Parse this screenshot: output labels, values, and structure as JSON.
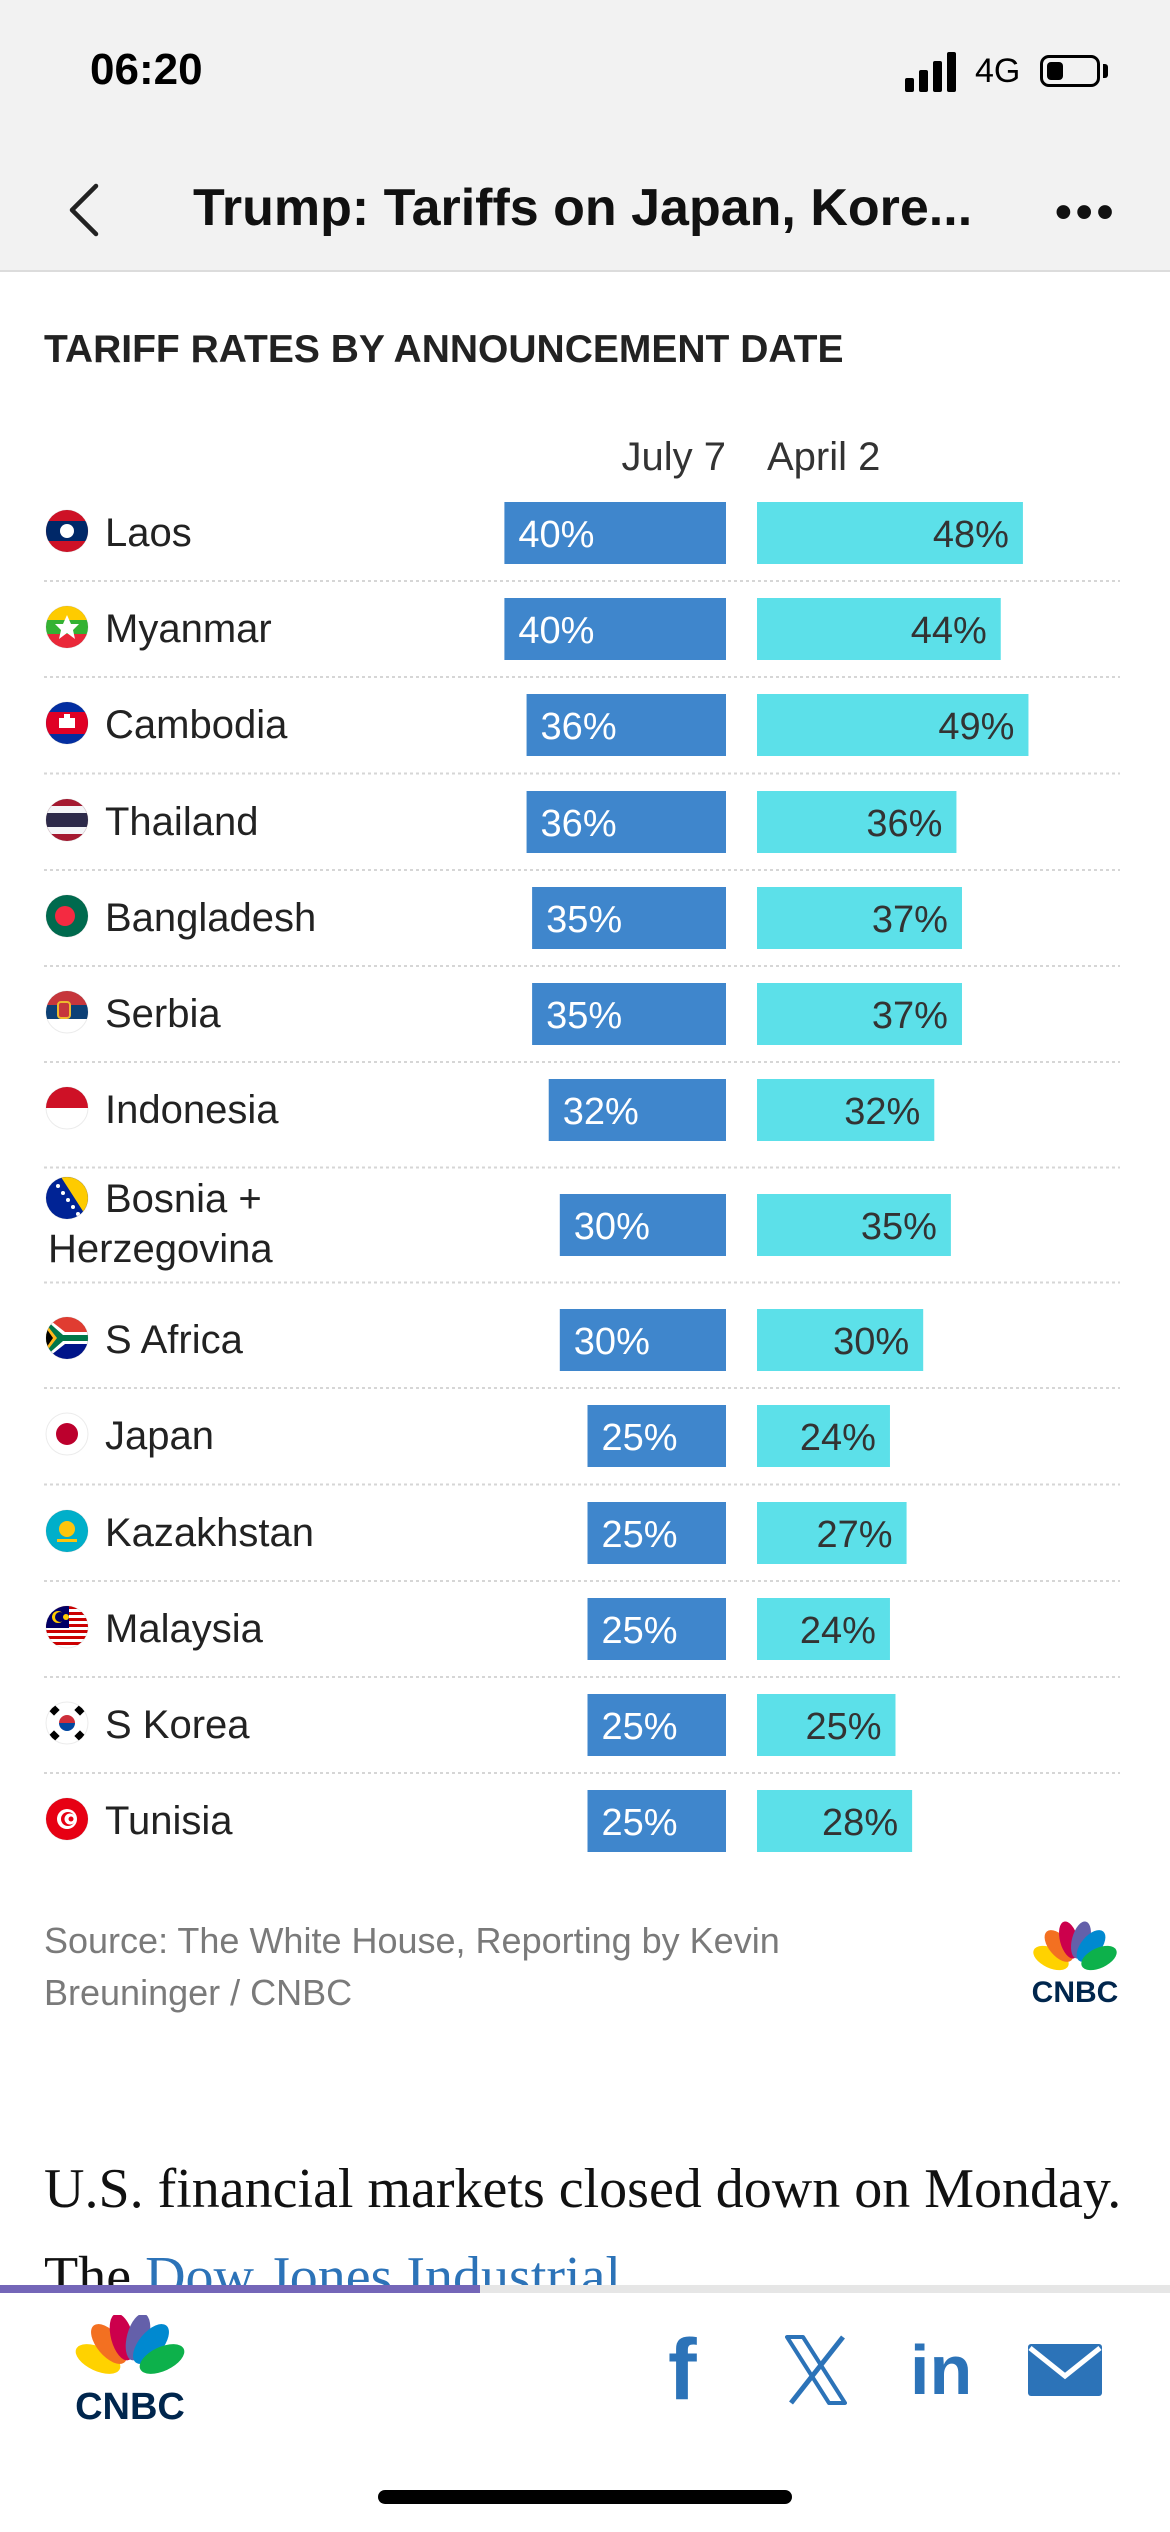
{
  "status": {
    "time": "06:20",
    "network": "4G",
    "battery_level": 0.35
  },
  "nav": {
    "title": "Trump: Tariffs on Japan, Kore..."
  },
  "chart_data": {
    "type": "bar",
    "title": "TARIFF RATES BY ANNOUNCEMENT DATE",
    "series": [
      {
        "name": "July 7",
        "color": "#3f86cc",
        "values": [
          40,
          40,
          36,
          36,
          35,
          35,
          32,
          30,
          30,
          25,
          25,
          25,
          25,
          25
        ]
      },
      {
        "name": "April 2",
        "color": "#5ce0e9",
        "values": [
          48,
          44,
          49,
          36,
          37,
          37,
          32,
          35,
          30,
          24,
          27,
          24,
          25,
          28
        ]
      }
    ],
    "categories": [
      "Laos",
      "Myanmar",
      "Cambodia",
      "Thailand",
      "Bangladesh",
      "Serbia",
      "Indonesia",
      "Bosnia + Herzegovina",
      "S Africa",
      "Japan",
      "Kazakhstan",
      "Malaysia",
      "S Korea",
      "Tunisia"
    ],
    "category_lines": [
      [
        "Laos"
      ],
      [
        "Myanmar"
      ],
      [
        "Cambodia"
      ],
      [
        "Thailand"
      ],
      [
        "Bangladesh"
      ],
      [
        "Serbia"
      ],
      [
        "Indonesia"
      ],
      [
        "Bosnia +",
        "Herzegovina"
      ],
      [
        "S Africa"
      ],
      [
        "Japan"
      ],
      [
        "Kazakhstan"
      ],
      [
        "Malaysia"
      ],
      [
        "S Korea"
      ],
      [
        "Tunisia"
      ]
    ],
    "flag_icons": [
      "flag-laos-icon",
      "flag-myanmar-icon",
      "flag-cambodia-icon",
      "flag-thailand-icon",
      "flag-bangladesh-icon",
      "flag-serbia-icon",
      "flag-indonesia-icon",
      "flag-bosnia-icon",
      "flag-south-africa-icon",
      "flag-japan-icon",
      "flag-kazakhstan-icon",
      "flag-malaysia-icon",
      "flag-south-korea-icon",
      "flag-tunisia-icon"
    ],
    "value_suffix": "%",
    "source": "Source: The White House, Reporting by Kevin Breuninger / CNBC"
  },
  "brand": {
    "name": "CNBC"
  },
  "article": {
    "text_before": "U.S. financial markets closed down on Monday. The ",
    "link": "Dow Jones Industrial"
  },
  "reading_progress": 0.41,
  "share": {
    "icons": [
      "facebook-icon",
      "x-icon",
      "linkedin-icon",
      "mail-icon"
    ],
    "facebook": "f",
    "linkedin": "in"
  }
}
